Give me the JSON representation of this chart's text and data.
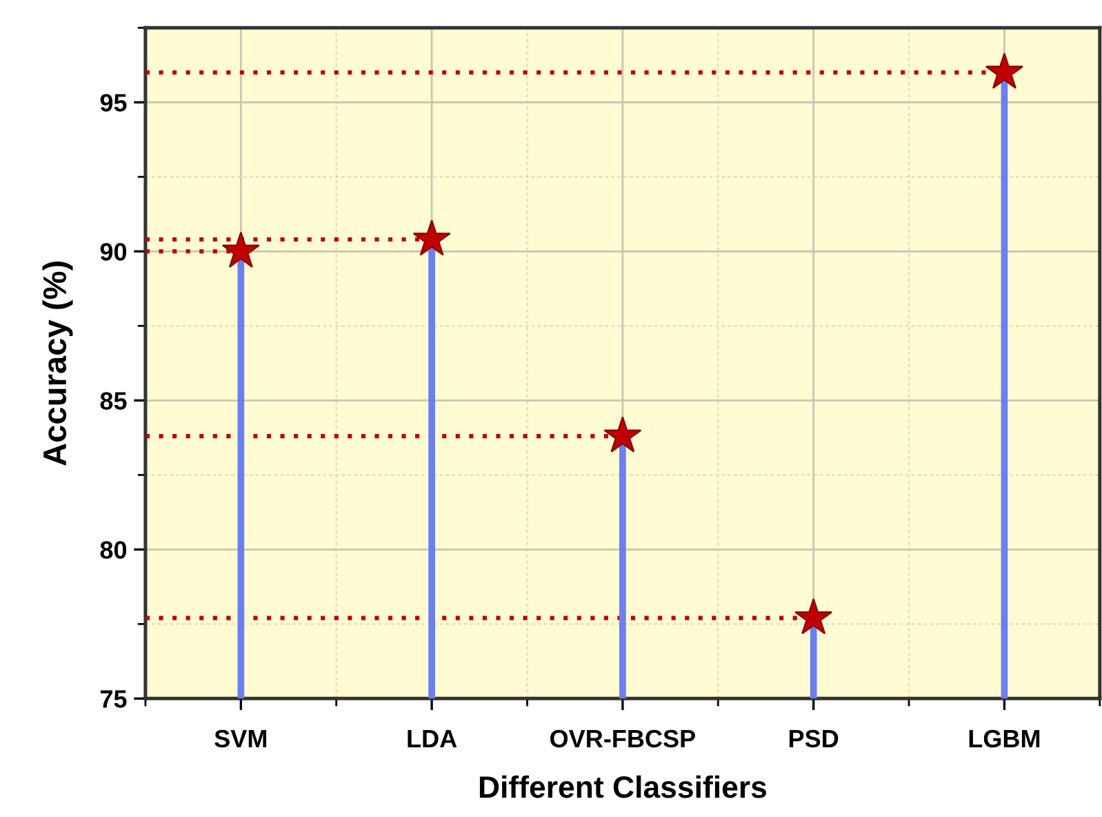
{
  "chart_data": {
    "type": "lollipop",
    "xlabel": "Different Classifiers",
    "ylabel": "Accuracy (%)",
    "categories": [
      "SVM",
      "LDA",
      "OVR-FBCSP",
      "PSD",
      "LGBM"
    ],
    "series": [
      {
        "color": "#c00000",
        "values": [
          90.0,
          90.4,
          83.8,
          77.7,
          96.0
        ]
      }
    ],
    "ref_lines": [
      {
        "axis": "y",
        "value": 96.0,
        "color": "#c00000",
        "line_style": "dotted"
      },
      {
        "axis": "y",
        "value": 90.4,
        "color": "#c00000",
        "line_style": "dotted"
      },
      {
        "axis": "y",
        "value": 90.0,
        "color": "#c00000",
        "line_style": "dotted"
      },
      {
        "axis": "y",
        "value": 83.8,
        "color": "#c00000",
        "line_style": "dotted"
      },
      {
        "axis": "y",
        "value": 77.7,
        "color": "#c00000",
        "line_style": "dotted"
      }
    ],
    "ylim": [
      75,
      97.5
    ],
    "yticks": [
      75,
      80,
      85,
      90,
      95
    ],
    "grid": true,
    "marker": "star"
  }
}
